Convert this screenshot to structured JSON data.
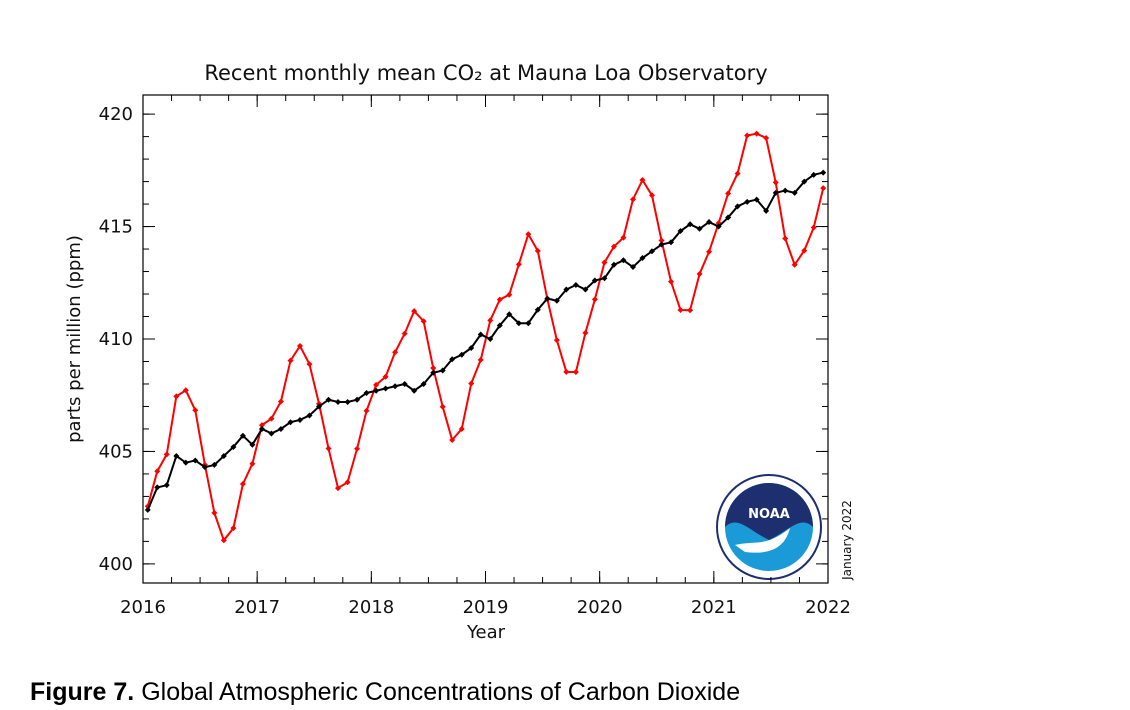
{
  "chart_data": {
    "type": "line",
    "title": "Recent monthly mean CO₂ at Mauna Loa Observatory",
    "x_label": "Year",
    "y_label": "parts per million (ppm)",
    "date_note": "January 2022",
    "logo_text": "NOAA",
    "xlim": [
      2016,
      2022
    ],
    "xticks": [
      2016,
      2017,
      2018,
      2019,
      2020,
      2021,
      2022
    ],
    "ylim": [
      399.15,
      420.85
    ],
    "yticks": [
      400,
      405,
      410,
      415,
      420
    ],
    "x": [
      2016.042,
      2016.125,
      2016.208,
      2016.292,
      2016.375,
      2016.458,
      2016.542,
      2016.625,
      2016.708,
      2016.792,
      2016.875,
      2016.958,
      2017.042,
      2017.125,
      2017.208,
      2017.292,
      2017.375,
      2017.458,
      2017.542,
      2017.625,
      2017.708,
      2017.792,
      2017.875,
      2017.958,
      2018.042,
      2018.125,
      2018.208,
      2018.292,
      2018.375,
      2018.458,
      2018.542,
      2018.625,
      2018.708,
      2018.792,
      2018.875,
      2018.958,
      2019.042,
      2019.125,
      2019.208,
      2019.292,
      2019.375,
      2019.458,
      2019.542,
      2019.625,
      2019.708,
      2019.792,
      2019.875,
      2019.958,
      2020.042,
      2020.125,
      2020.208,
      2020.292,
      2020.375,
      2020.458,
      2020.542,
      2020.625,
      2020.708,
      2020.792,
      2020.875,
      2020.958,
      2021.042,
      2021.125,
      2021.208,
      2021.292,
      2021.375,
      2021.458,
      2021.542,
      2021.625,
      2021.708,
      2021.792,
      2021.875,
      2021.958
    ],
    "series": [
      {
        "color": "#ff0000",
        "values": [
          402.56,
          404.12,
          404.87,
          407.45,
          407.72,
          406.83,
          404.41,
          402.27,
          401.05,
          401.59,
          403.55,
          404.45,
          406.17,
          406.46,
          407.22,
          409.04,
          409.69,
          408.88,
          407.12,
          405.13,
          403.37,
          403.63,
          405.12,
          406.81,
          407.96,
          408.32,
          409.41,
          410.24,
          411.24,
          410.79,
          408.71,
          406.99,
          405.51,
          406.0,
          408.02,
          409.07,
          410.83,
          411.75,
          411.97,
          413.32,
          414.66,
          413.92,
          411.77,
          409.95,
          408.54,
          408.53,
          410.27,
          411.76,
          413.4,
          414.11,
          414.51,
          416.21,
          417.07,
          416.39,
          414.38,
          412.55,
          411.29,
          411.28,
          412.89,
          413.88,
          415.15,
          416.47,
          417.36,
          419.05,
          419.13,
          418.94,
          416.96,
          414.47,
          413.3,
          413.93,
          414.96,
          416.71
        ]
      },
      {
        "color": "#000000",
        "values": [
          402.4,
          403.4,
          403.5,
          404.8,
          404.5,
          404.6,
          404.3,
          404.4,
          404.8,
          405.2,
          405.7,
          405.3,
          406.0,
          405.8,
          406.0,
          406.3,
          406.4,
          406.6,
          407.0,
          407.3,
          407.2,
          407.2,
          407.3,
          407.6,
          407.7,
          407.8,
          407.9,
          408.0,
          407.7,
          408.0,
          408.5,
          408.6,
          409.1,
          409.3,
          409.6,
          410.2,
          410.0,
          410.6,
          411.1,
          410.7,
          410.7,
          411.3,
          411.8,
          411.7,
          412.2,
          412.4,
          412.2,
          412.6,
          412.7,
          413.3,
          413.5,
          413.2,
          413.6,
          413.9,
          414.2,
          414.3,
          414.8,
          415.1,
          414.9,
          415.2,
          415.0,
          415.4,
          415.9,
          416.1,
          416.2,
          415.7,
          416.5,
          416.6,
          416.5,
          417.0,
          417.3,
          417.4
        ]
      }
    ]
  },
  "caption": {
    "label": "Figure 7.",
    "text": "Global Atmospheric Concentrations of Carbon Dioxide"
  }
}
